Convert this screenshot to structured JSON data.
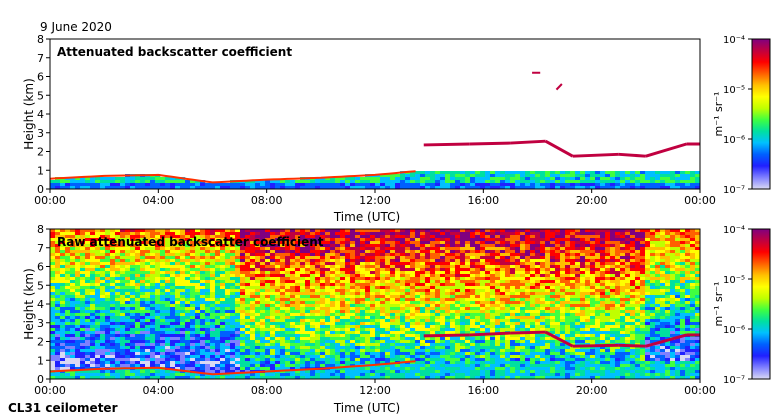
{
  "date_label": "9 June 2020",
  "footer_label": "CL31 ceilometer",
  "colormap": [
    "#d9d9f3",
    "#8080ff",
    "#2020ff",
    "#0060ff",
    "#00c0ff",
    "#00e0a0",
    "#40ff40",
    "#c0ff00",
    "#ffff00",
    "#ffc000",
    "#ff6000",
    "#ff0000",
    "#c00040",
    "#800080"
  ],
  "chart_data": [
    {
      "type": "heatmap",
      "title": "Attenuated backscatter coefficient",
      "xlabel": "Time (UTC)",
      "ylabel": "Height (km)",
      "x_ticks": [
        "00:00",
        "04:00",
        "08:00",
        "12:00",
        "16:00",
        "20:00",
        "00:00"
      ],
      "y_ticks": [
        "0",
        "1",
        "2",
        "3",
        "4",
        "5",
        "6",
        "7",
        "8"
      ],
      "xlim_hours": [
        0,
        24
      ],
      "ylim": [
        0,
        8
      ],
      "colorbar": {
        "unit": "m⁻¹ sr⁻¹",
        "ticks": [
          "10⁻⁴",
          "10⁻⁵",
          "10⁻⁶",
          "10⁻⁷"
        ],
        "scale": "log"
      },
      "features": [
        {
          "name": "boundary layer top",
          "t_hours": [
            0,
            2,
            4,
            6,
            8,
            10,
            12,
            13.5
          ],
          "height_km": [
            0.55,
            0.7,
            0.75,
            0.35,
            0.5,
            0.6,
            0.75,
            0.95
          ]
        },
        {
          "name": "aerosol layer",
          "t_hours": [
            0,
            4,
            8,
            12,
            16,
            20,
            24
          ],
          "height_km": [
            0.05,
            0.05,
            0.1,
            0.25,
            0.3,
            0.35,
            0.4
          ]
        },
        {
          "name": "cloud layer",
          "t_hours": [
            13.8,
            15.5,
            17.0,
            18.3,
            19.3,
            21.0,
            22.0,
            23.5,
            24
          ],
          "height_km": [
            2.35,
            2.4,
            2.45,
            2.55,
            1.75,
            1.85,
            1.75,
            2.4,
            2.4
          ]
        },
        {
          "name": "high cloud",
          "t_hours": [
            17.8,
            18.7
          ],
          "height_km": [
            6.2,
            5.3
          ]
        }
      ]
    },
    {
      "type": "heatmap",
      "title": "Raw attenuated backscatter coefficient",
      "xlabel": "Time (UTC)",
      "ylabel": "Height (km)",
      "x_ticks": [
        "00:00",
        "04:00",
        "08:00",
        "12:00",
        "16:00",
        "20:00",
        "00:00"
      ],
      "y_ticks": [
        "0",
        "1",
        "2",
        "3",
        "4",
        "5",
        "6",
        "7",
        "8"
      ],
      "xlim_hours": [
        0,
        24
      ],
      "ylim": [
        0,
        8
      ],
      "colorbar": {
        "unit": "m⁻¹ sr⁻¹",
        "ticks": [
          "10⁻⁴",
          "10⁻⁵",
          "10⁻⁶",
          "10⁻⁷"
        ],
        "scale": "log"
      },
      "features": [
        {
          "name": "boundary layer top",
          "t_hours": [
            0,
            2,
            4,
            6,
            8,
            10,
            12,
            13.5
          ],
          "height_km": [
            0.4,
            0.55,
            0.6,
            0.25,
            0.4,
            0.55,
            0.75,
            0.95
          ]
        },
        {
          "name": "cloud layer",
          "t_hours": [
            13.8,
            15.5,
            17.0,
            18.3,
            19.3,
            21.0,
            22.0,
            23.5,
            24
          ],
          "height_km": [
            2.3,
            2.35,
            2.45,
            2.5,
            1.75,
            1.8,
            1.75,
            2.35,
            2.35
          ]
        },
        {
          "name": "noise background",
          "description_level": "high noise aloft after 07:00"
        }
      ]
    }
  ]
}
